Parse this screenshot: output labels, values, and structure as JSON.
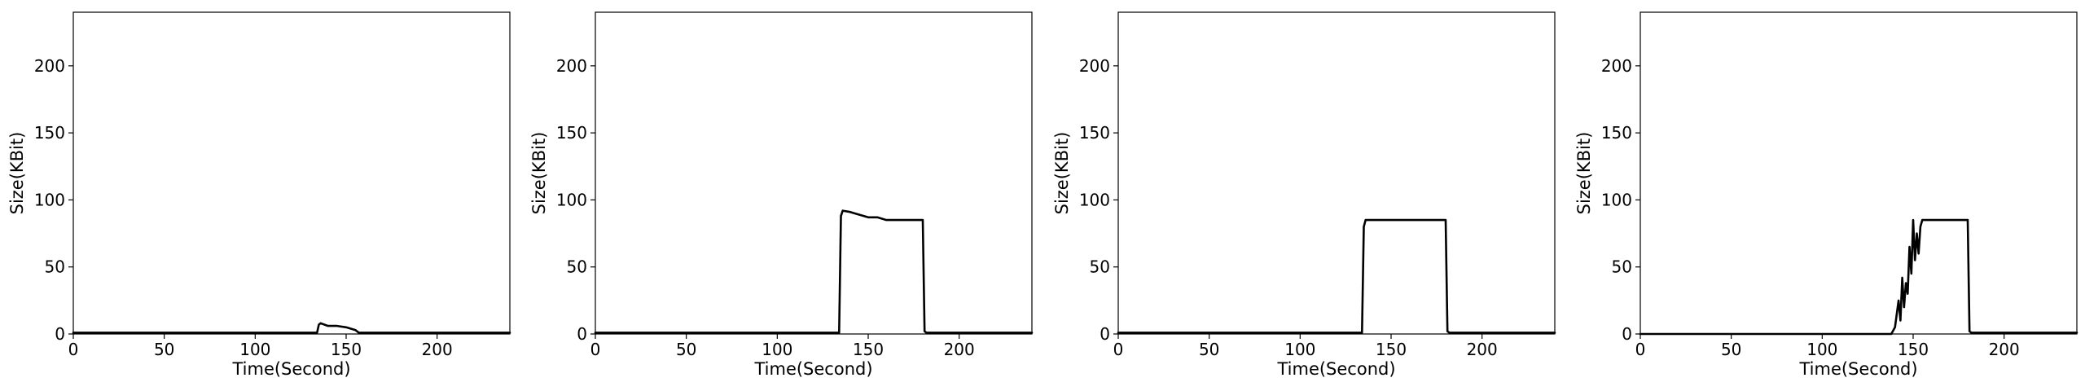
{
  "chart_data": [
    {
      "type": "line",
      "xlabel": "Time(Second)",
      "ylabel": "Size(KBit)",
      "xlim": [
        0,
        240
      ],
      "ylim": [
        0,
        240
      ],
      "xticks": [
        0,
        50,
        100,
        150,
        200
      ],
      "yticks": [
        0,
        50,
        100,
        150,
        200
      ],
      "grid": false,
      "series": [
        {
          "x": [
            0,
            134,
            135,
            136,
            140,
            145,
            150,
            155,
            157,
            158,
            240
          ],
          "y": [
            1,
            1,
            7,
            8,
            6,
            6,
            5,
            3,
            1,
            1,
            1
          ]
        }
      ]
    },
    {
      "type": "line",
      "xlabel": "Time(Second)",
      "ylabel": "Size(KBit)",
      "xlim": [
        0,
        240
      ],
      "ylim": [
        0,
        240
      ],
      "xticks": [
        0,
        50,
        100,
        150,
        200
      ],
      "yticks": [
        0,
        50,
        100,
        150,
        200
      ],
      "grid": false,
      "series": [
        {
          "x": [
            0,
            134,
            135,
            136,
            140,
            145,
            150,
            155,
            160,
            170,
            180,
            181,
            182,
            240
          ],
          "y": [
            1,
            1,
            88,
            92,
            91,
            89,
            87,
            87,
            85,
            85,
            85,
            2,
            1,
            1
          ]
        }
      ]
    },
    {
      "type": "line",
      "xlabel": "Time(Second)",
      "ylabel": "Size(KBit)",
      "xlim": [
        0,
        240
      ],
      "ylim": [
        0,
        240
      ],
      "xticks": [
        0,
        50,
        100,
        150,
        200
      ],
      "yticks": [
        0,
        50,
        100,
        150,
        200
      ],
      "grid": false,
      "series": [
        {
          "x": [
            0,
            134,
            135,
            136,
            140,
            150,
            160,
            170,
            180,
            181,
            182,
            240
          ],
          "y": [
            1,
            1,
            80,
            85,
            85,
            85,
            85,
            85,
            85,
            2,
            1,
            1
          ]
        }
      ]
    },
    {
      "type": "line",
      "xlabel": "Time(Second)",
      "ylabel": "Size(KBit)",
      "xlim": [
        0,
        240
      ],
      "ylim": [
        0,
        240
      ],
      "xticks": [
        0,
        50,
        100,
        150,
        200
      ],
      "yticks": [
        0,
        50,
        100,
        150,
        200
      ],
      "grid": false,
      "series": [
        {
          "x": [
            0,
            138,
            140,
            141,
            142,
            143,
            144,
            145,
            146,
            147,
            148,
            149,
            150,
            151,
            152,
            153,
            154,
            155,
            156,
            180,
            181,
            182,
            240
          ],
          "y": [
            0,
            0,
            5,
            15,
            25,
            10,
            42,
            20,
            38,
            30,
            65,
            45,
            85,
            55,
            75,
            60,
            80,
            85,
            85,
            85,
            2,
            1,
            1
          ]
        }
      ]
    }
  ]
}
